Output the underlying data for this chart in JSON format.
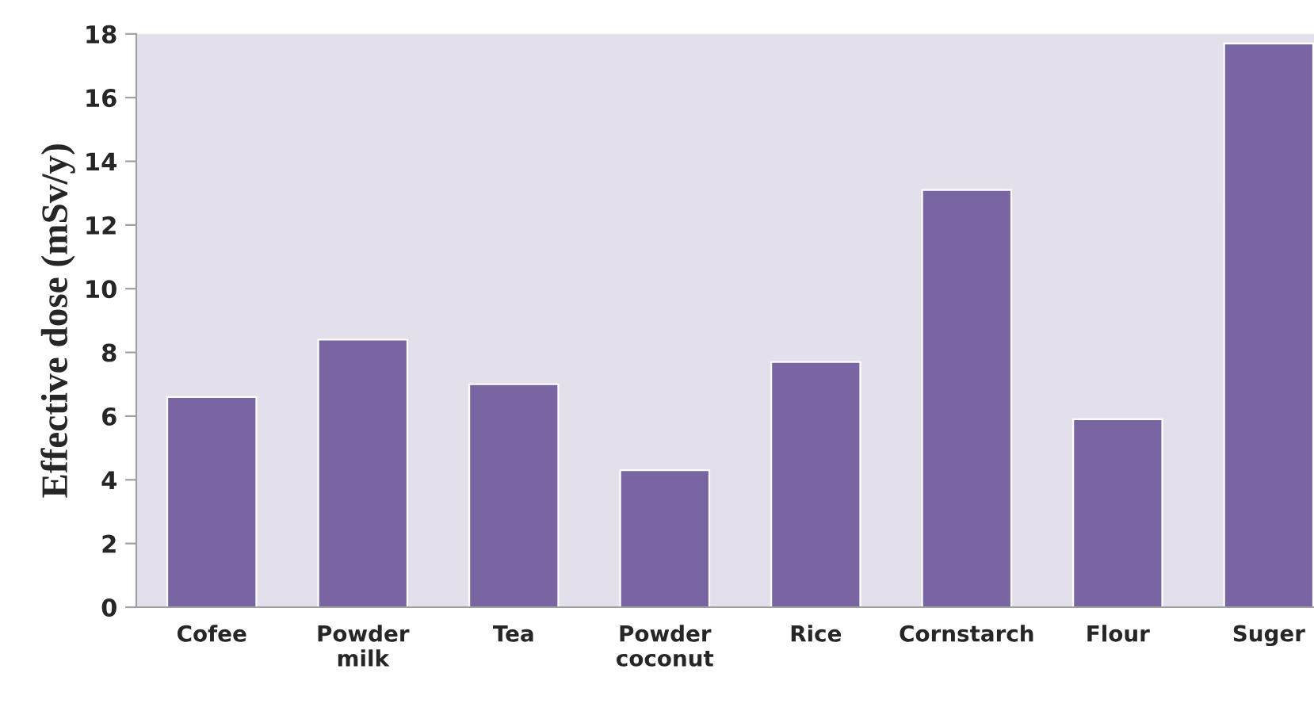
{
  "chart_data": {
    "type": "bar",
    "ylabel": "Effective dose (mSv/y)",
    "categories": [
      "Cofee",
      "Powder\nmilk",
      "Tea",
      "Powder\ncoconut",
      "Rice",
      "Cornstarch",
      "Flour",
      "Suger"
    ],
    "values": [
      6.6,
      8.4,
      7.0,
      4.3,
      7.7,
      13.1,
      5.9,
      17.7
    ],
    "color": "#7a65a3",
    "ylim": [
      0,
      18
    ],
    "yticks": [
      0,
      2,
      4,
      6,
      8,
      10,
      12,
      14,
      16,
      18
    ],
    "grid": false,
    "legend": false
  }
}
